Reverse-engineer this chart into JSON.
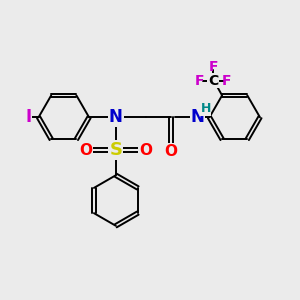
{
  "bg_color": "#ebebeb",
  "atom_colors": {
    "C": "#000000",
    "N": "#0000cc",
    "O": "#ff0000",
    "S": "#cccc00",
    "I": "#cc00cc",
    "F": "#cc00cc",
    "H": "#008888"
  },
  "bond_lw": 1.4,
  "ring_r": 0.85,
  "font_size_atom": 11,
  "font_size_small": 9,
  "xlim": [
    0,
    10
  ],
  "ylim": [
    0,
    10
  ]
}
